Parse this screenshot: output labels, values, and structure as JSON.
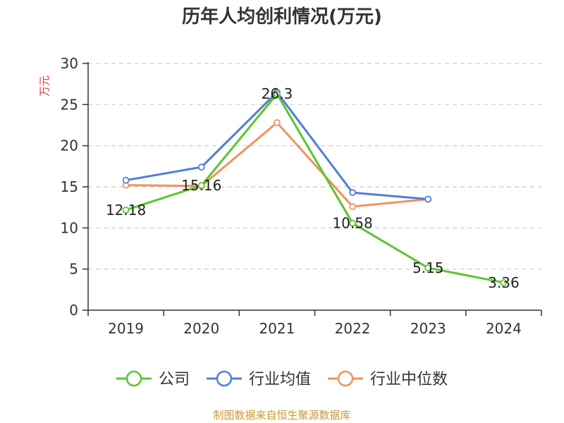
{
  "chart_data": {
    "type": "line",
    "title": "历年人均创利情况(万元)",
    "xlabel": "",
    "ylabel": "万元",
    "categories": [
      "2019",
      "2020",
      "2021",
      "2022",
      "2023",
      "2024"
    ],
    "ylim": [
      0,
      30
    ],
    "yticks": [
      0,
      5,
      10,
      15,
      20,
      25,
      30
    ],
    "grid": true,
    "legend_position": "bottom-center",
    "series": [
      {
        "name": "公司",
        "color": "#5cc530",
        "values": [
          12.18,
          15.16,
          26.3,
          10.58,
          5.15,
          3.36
        ],
        "data_labels": [
          "12.18",
          "15.16",
          "26.3",
          "10.58",
          "5.15",
          "3.36"
        ]
      },
      {
        "name": "行业均值",
        "color": "#4f7fd8",
        "values": [
          15.8,
          17.4,
          26.5,
          14.3,
          13.5,
          null
        ]
      },
      {
        "name": "行业中位数",
        "color": "#f0925e",
        "values": [
          15.2,
          15.1,
          22.8,
          12.6,
          13.5,
          null
        ]
      }
    ]
  },
  "colors": {
    "ylabel": "#e03a3a",
    "source": "#c79a2e",
    "axis": "#333333",
    "grid": "#cccccc"
  },
  "source_note": "制图数据来自恒生聚源数据库"
}
